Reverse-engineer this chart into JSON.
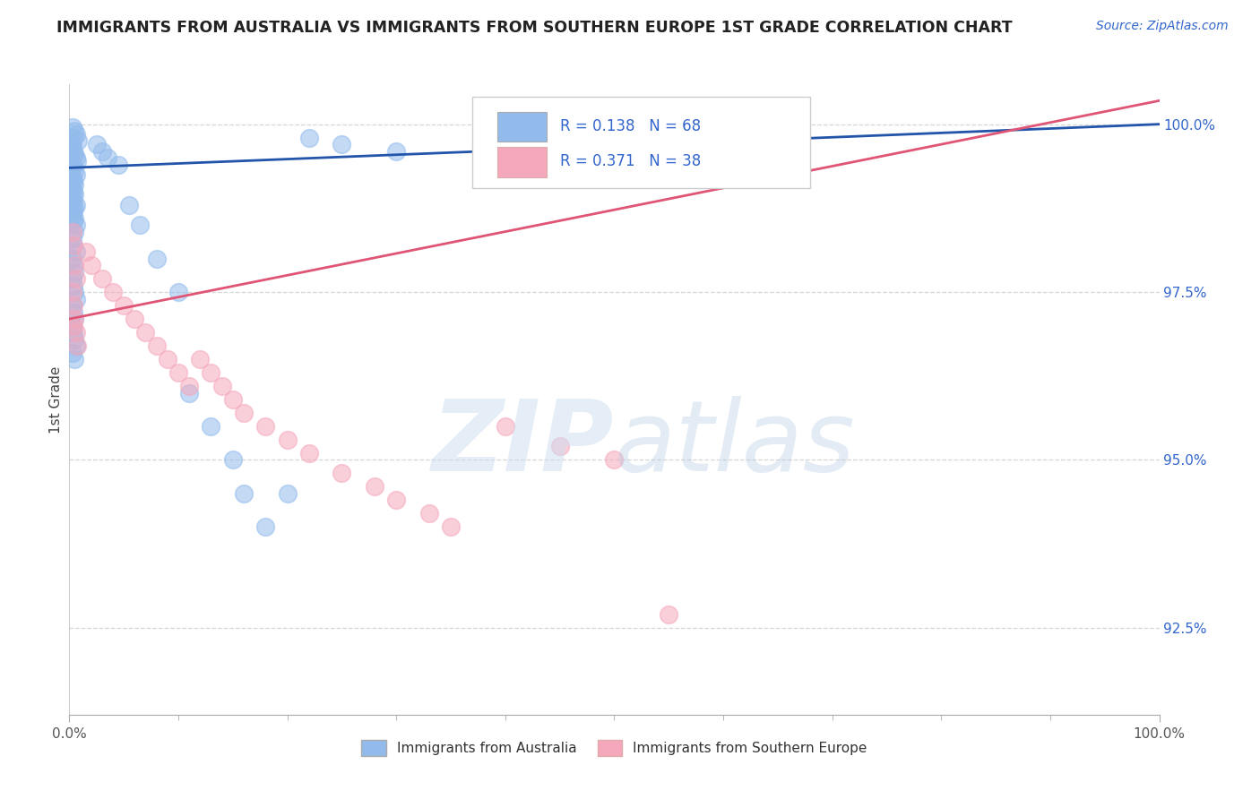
{
  "title": "IMMIGRANTS FROM AUSTRALIA VS IMMIGRANTS FROM SOUTHERN EUROPE 1ST GRADE CORRELATION CHART",
  "source_text": "Source: ZipAtlas.com",
  "ylabel": "1st Grade",
  "xlim": [
    0,
    100
  ],
  "ylim": [
    91.2,
    100.6
  ],
  "y_tick_values": [
    92.5,
    95.0,
    97.5,
    100.0
  ],
  "legend_label1": "Immigrants from Australia",
  "legend_label2": "Immigrants from Southern Europe",
  "r1": 0.138,
  "n1": 68,
  "r2": 0.371,
  "n2": 38,
  "color_blue": "#92bbec",
  "color_pink": "#f5a8bc",
  "color_blue_line": "#2255aa",
  "color_pink_line": "#e05575",
  "color_axis_text": "#3366cc",
  "color_title": "#222222",
  "background_color": "#ffffff",
  "aus_line_x0": 0,
  "aus_line_y0": 99.35,
  "aus_line_x1": 100,
  "aus_line_y1": 100.0,
  "seur_line_x0": 0,
  "seur_line_y0": 97.1,
  "seur_line_x1": 100,
  "seur_line_y1": 100.35,
  "aus_x": [
    0.3,
    0.5,
    0.6,
    0.4,
    0.8,
    0.3,
    0.2,
    0.4,
    0.5,
    0.6,
    0.7,
    0.4,
    0.3,
    0.5,
    0.6,
    0.3,
    0.4,
    0.5,
    0.3,
    0.4,
    0.5,
    0.3,
    0.4,
    0.6,
    0.5,
    0.4,
    0.3,
    0.5,
    0.4,
    0.6,
    0.5,
    0.3,
    0.4,
    0.6,
    0.3,
    0.4,
    0.5,
    0.3,
    0.4,
    0.5,
    0.6,
    0.3,
    0.4,
    0.5,
    0.3,
    0.4,
    0.5,
    0.6,
    0.3,
    0.5,
    2.5,
    3.0,
    3.5,
    4.5,
    5.5,
    6.5,
    8.0,
    10.0,
    11.0,
    13.0,
    15.0,
    16.0,
    18.0,
    20.0,
    22.0,
    25.0,
    30.0,
    42.0
  ],
  "aus_y": [
    99.95,
    99.9,
    99.85,
    99.8,
    99.75,
    99.7,
    99.65,
    99.6,
    99.55,
    99.5,
    99.45,
    99.4,
    99.35,
    99.3,
    99.25,
    99.2,
    99.15,
    99.1,
    99.05,
    99.0,
    98.95,
    98.9,
    98.85,
    98.8,
    98.75,
    98.7,
    98.65,
    98.6,
    98.55,
    98.5,
    98.4,
    98.3,
    98.2,
    98.1,
    98.0,
    97.9,
    97.8,
    97.7,
    97.6,
    97.5,
    97.4,
    97.3,
    97.2,
    97.1,
    97.0,
    96.9,
    96.8,
    96.7,
    96.6,
    96.5,
    99.7,
    99.6,
    99.5,
    99.4,
    98.8,
    98.5,
    98.0,
    97.5,
    96.0,
    95.5,
    95.0,
    94.5,
    94.0,
    94.5,
    99.8,
    99.7,
    99.6,
    99.5
  ],
  "seur_x": [
    0.3,
    0.4,
    0.5,
    0.6,
    0.3,
    0.4,
    0.5,
    0.6,
    0.7,
    0.4,
    1.5,
    2.0,
    3.0,
    4.0,
    5.0,
    6.0,
    7.0,
    8.0,
    9.0,
    10.0,
    11.0,
    12.0,
    13.0,
    14.0,
    15.0,
    16.0,
    18.0,
    20.0,
    22.0,
    25.0,
    28.0,
    30.0,
    33.0,
    35.0,
    40.0,
    45.0,
    50.0,
    55.0
  ],
  "seur_y": [
    98.4,
    98.2,
    97.9,
    97.7,
    97.5,
    97.3,
    97.1,
    96.9,
    96.7,
    97.0,
    98.1,
    97.9,
    97.7,
    97.5,
    97.3,
    97.1,
    96.9,
    96.7,
    96.5,
    96.3,
    96.1,
    96.5,
    96.3,
    96.1,
    95.9,
    95.7,
    95.5,
    95.3,
    95.1,
    94.8,
    94.6,
    94.4,
    94.2,
    94.0,
    95.5,
    95.2,
    95.0,
    92.7
  ]
}
